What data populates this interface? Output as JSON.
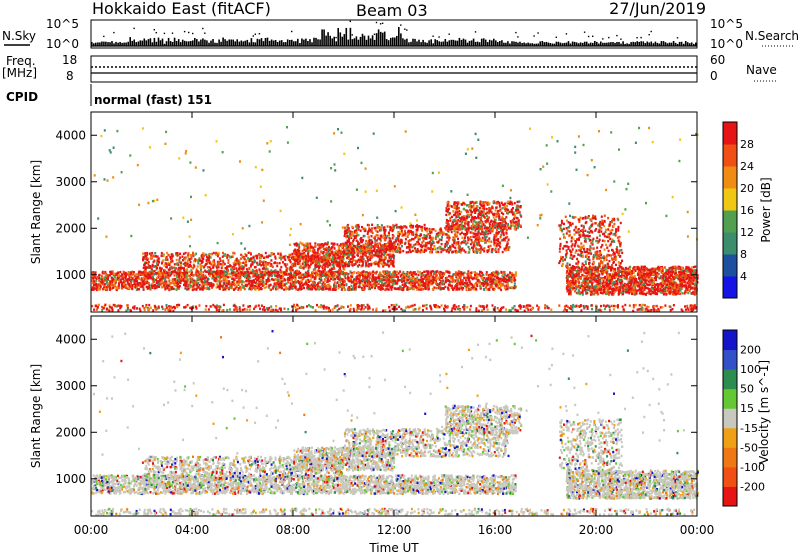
{
  "header": {
    "station": "Hokkaido East (fitACF)",
    "beam": "Beam 03",
    "date": "27/Jun/2019"
  },
  "top_panels": {
    "nsky_label": "N.Sky",
    "nsky_ticks": [
      "10^5",
      "10^0"
    ],
    "nsearch_label": "N.Search",
    "freq_label": "Freq.",
    "freq_unit": "[MHz]",
    "freq_ticks": [
      "18",
      "8"
    ],
    "nave_label": "Nave",
    "nave_ticks": [
      "60",
      "0"
    ],
    "cpid_label": "CPID",
    "cpid_value": "normal (fast) 151"
  },
  "colors": {
    "power_scale": [
      "#1414e6",
      "#1e50a0",
      "#3c8c6e",
      "#50a050",
      "#f0c814",
      "#f08c14",
      "#f05014",
      "#e61414"
    ],
    "velocity_scale": [
      "#1414c8",
      "#3250c8",
      "#2d8c50",
      "#64c832",
      "#c8c8be",
      "#f0a014",
      "#f07814",
      "#f05014",
      "#e61414"
    ]
  },
  "chart_data": [
    {
      "type": "heatmap",
      "title": "",
      "xlabel": "",
      "ylabel": "Slant Range [km]",
      "x_ticks": [
        "00:00",
        "04:00",
        "08:00",
        "12:00",
        "16:00",
        "20:00",
        "00:00"
      ],
      "y_ticks": [
        1000,
        2000,
        3000,
        4000
      ],
      "ylim": [
        200,
        4500
      ],
      "colorbar_label": "Power [dB]",
      "colorbar_ticks": [
        4,
        8,
        12,
        16,
        20,
        24,
        28
      ],
      "clim": [
        0,
        32
      ]
    },
    {
      "type": "heatmap",
      "title": "",
      "xlabel": "Time UT",
      "ylabel": "Slant Range [km]",
      "x_ticks": [
        "00:00",
        "04:00",
        "08:00",
        "12:00",
        "16:00",
        "20:00",
        "00:00"
      ],
      "y_ticks": [
        1000,
        2000,
        3000,
        4000
      ],
      "ylim": [
        200,
        4500
      ],
      "colorbar_label": "Velocity [m s^-1]",
      "colorbar_ticks": [
        "200",
        "100",
        "50",
        "15",
        "-15",
        "-50",
        "-100",
        "-200"
      ]
    }
  ]
}
